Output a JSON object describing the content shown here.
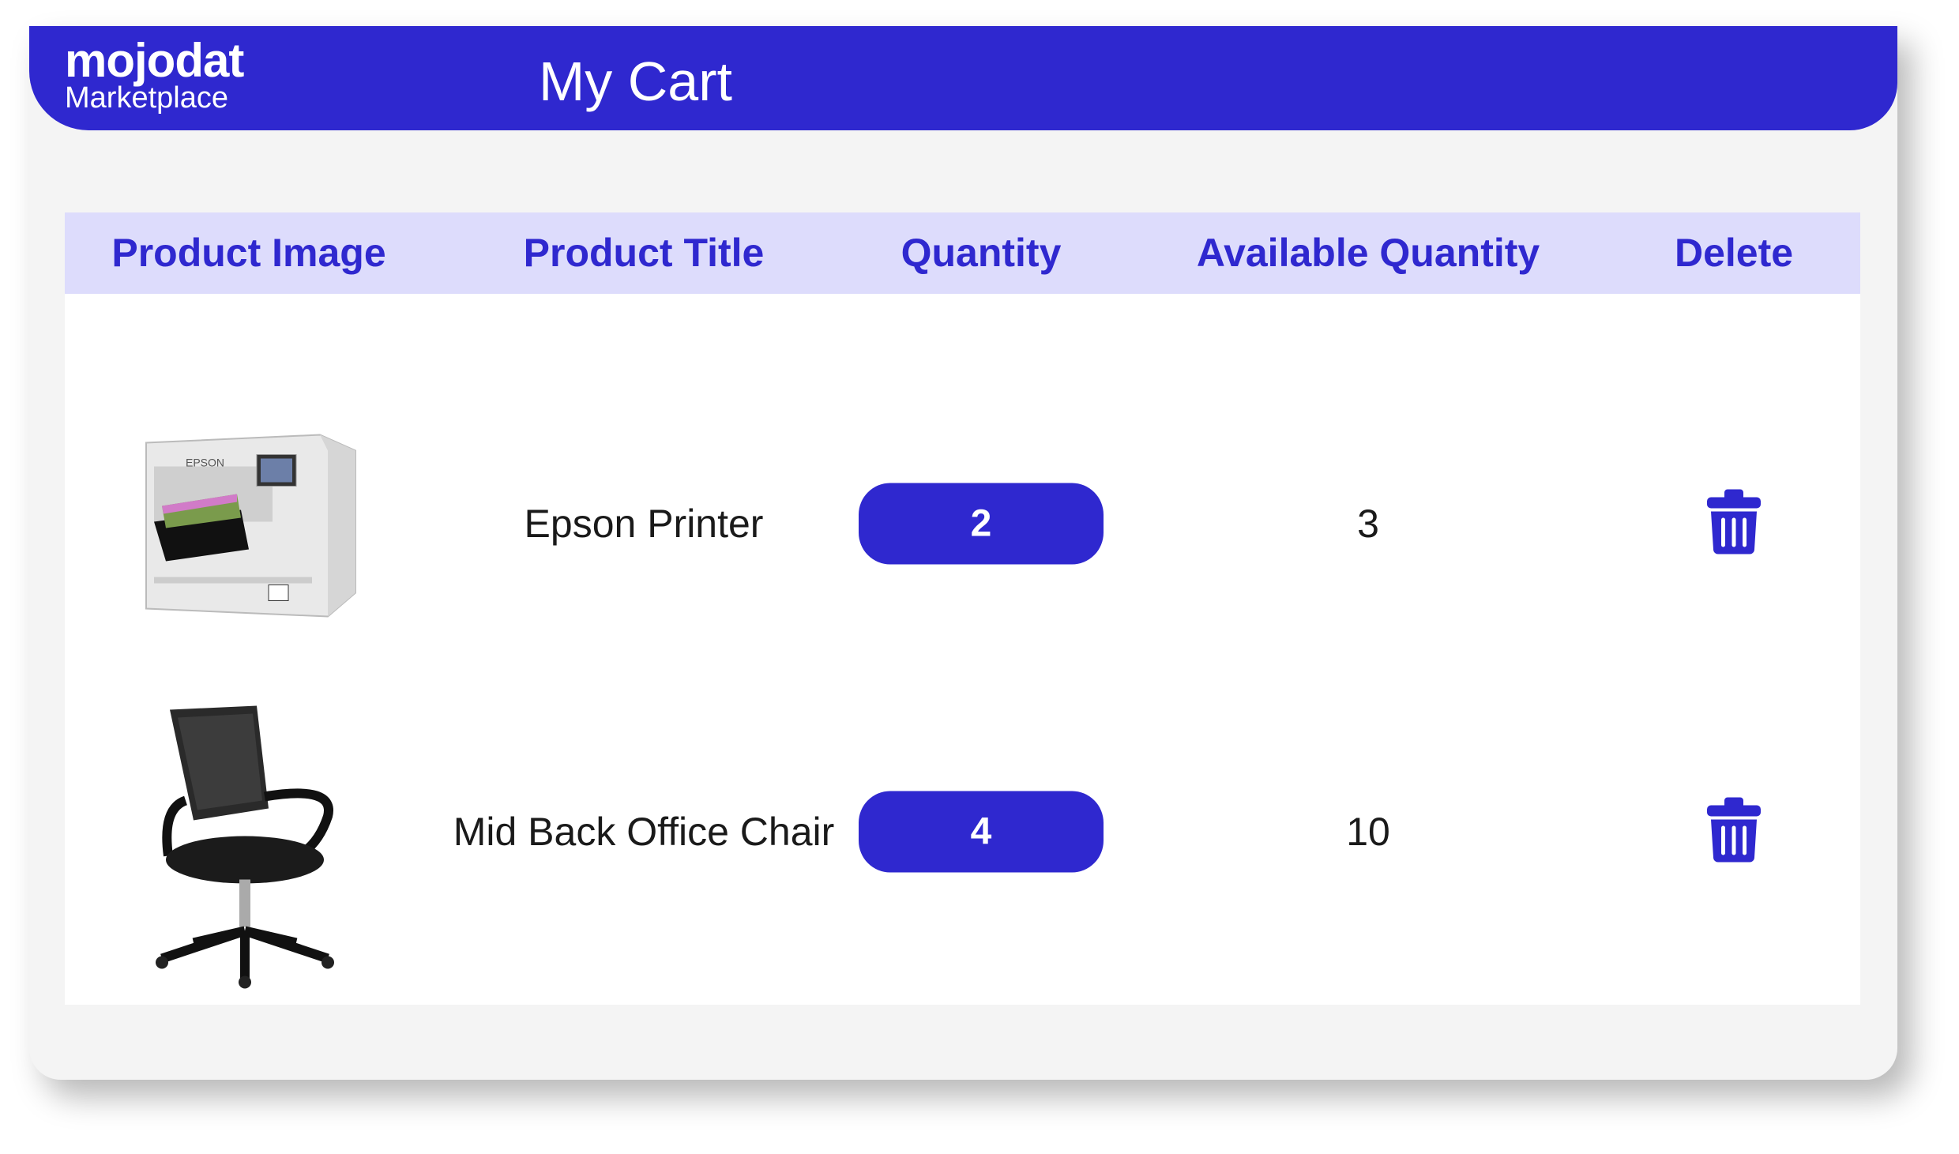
{
  "header": {
    "logo_brand": "mojodat",
    "logo_sub": "Marketplace",
    "title": "My Cart"
  },
  "table": {
    "columns": [
      "Product Image",
      "Product Title",
      "Quantity",
      "Available Quantity",
      "Delete"
    ],
    "rows": [
      {
        "image": "epson-printer-image",
        "title": "Epson Printer",
        "quantity": "2",
        "available": "3",
        "delete_icon": "trash-icon"
      },
      {
        "image": "office-chair-image",
        "title": "Mid Back Office Chair",
        "quantity": "4",
        "available": "10",
        "delete_icon": "trash-icon"
      }
    ]
  },
  "colors": {
    "brand": "#2f28cf",
    "header_row": "#dddcfc",
    "background": "#f4f4f4"
  }
}
